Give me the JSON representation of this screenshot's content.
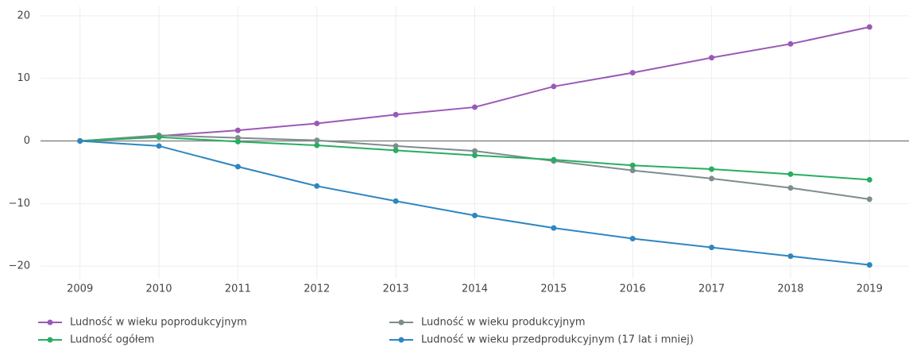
{
  "chart_data": {
    "type": "line",
    "x": [
      2009,
      2010,
      2011,
      2012,
      2013,
      2014,
      2015,
      2016,
      2017,
      2018,
      2019
    ],
    "series": [
      {
        "name": "Ludność w wieku poprodukcyjnym",
        "color": "#9b59b6",
        "values": [
          0,
          0.8,
          1.7,
          2.8,
          4.2,
          5.4,
          8.7,
          10.9,
          13.3,
          15.5,
          18.2
        ]
      },
      {
        "name": "Ludność w wieku produkcyjnym",
        "color": "#7f8c8d",
        "values": [
          0,
          0.9,
          0.5,
          0.1,
          -0.8,
          -1.6,
          -3.2,
          -4.7,
          -6.0,
          -7.5,
          -9.3
        ]
      },
      {
        "name": "Ludność ogółem",
        "color": "#27ae60",
        "values": [
          0,
          0.6,
          -0.1,
          -0.7,
          -1.5,
          -2.3,
          -3.0,
          -3.9,
          -4.5,
          -5.3,
          -6.2
        ]
      },
      {
        "name": "Ludność w wieku przedprodukcyjnym (17 lat i  mniej)",
        "color": "#2e86c1",
        "values": [
          0,
          -0.8,
          -4.1,
          -7.2,
          -9.6,
          -11.9,
          -13.9,
          -15.6,
          -17.0,
          -18.4,
          -19.8
        ]
      }
    ],
    "xlim": [
      2008.5,
      2019.5
    ],
    "xticks": [
      2009,
      2010,
      2011,
      2012,
      2013,
      2014,
      2015,
      2016,
      2017,
      2018,
      2019
    ],
    "ylim": [
      -22,
      21.5
    ],
    "yticks": [
      {
        "value": -20,
        "label": "−20"
      },
      {
        "value": -10,
        "label": "−10"
      },
      0,
      10,
      20
    ],
    "grid": true
  }
}
